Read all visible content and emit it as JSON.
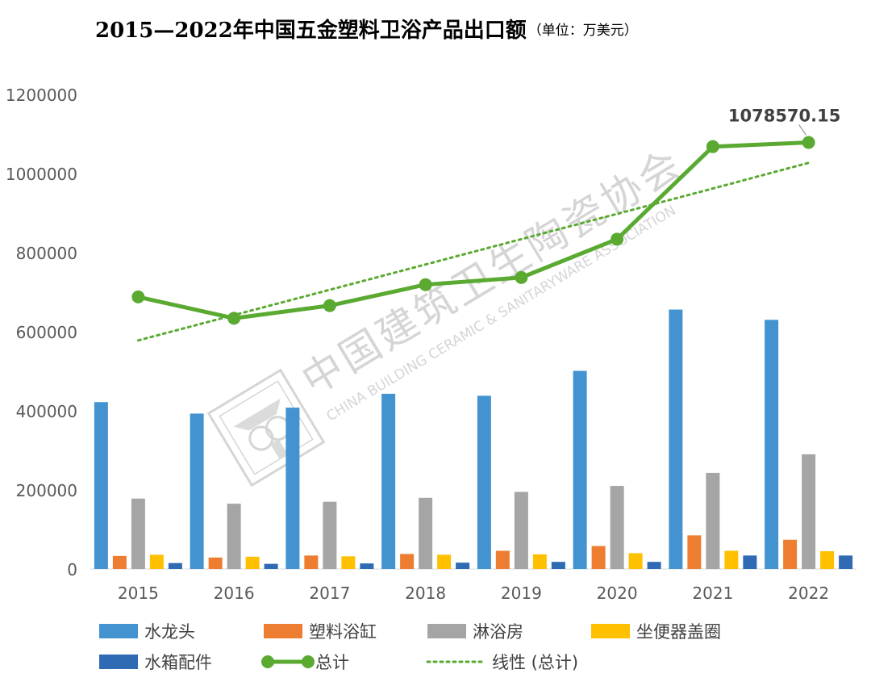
{
  "chart_data": {
    "type": "bar",
    "title": "2015—2022年中国五金塑料卫浴产品出口额",
    "subtitle": "（单位：万美元）",
    "categories": [
      "2015",
      "2016",
      "2017",
      "2018",
      "2019",
      "2020",
      "2021",
      "2022"
    ],
    "ylim": [
      0,
      1200000
    ],
    "yticks": [
      "0",
      "200000",
      "400000",
      "600000",
      "800000",
      "1000000",
      "1200000"
    ],
    "grid": false,
    "legend_position": "bottom",
    "series": [
      {
        "name": "水龙头",
        "type": "bar",
        "color": "#4393d0",
        "values": [
          422000,
          393000,
          408000,
          443000,
          438000,
          501000,
          656000,
          630000
        ]
      },
      {
        "name": "塑料浴缸",
        "type": "bar",
        "color": "#ed7d31",
        "values": [
          33000,
          29000,
          34000,
          38000,
          46000,
          58000,
          85000,
          74000
        ]
      },
      {
        "name": "淋浴房",
        "type": "bar",
        "color": "#a5a5a5",
        "values": [
          178000,
          165000,
          170000,
          180000,
          195000,
          210000,
          243000,
          290000
        ]
      },
      {
        "name": "坐便器盖圈",
        "type": "bar",
        "color": "#ffc000",
        "values": [
          36000,
          31000,
          32000,
          36000,
          37000,
          40000,
          46000,
          45000
        ]
      },
      {
        "name": "水箱配件",
        "type": "bar",
        "color": "#2f6ab5",
        "values": [
          15000,
          13000,
          14000,
          16000,
          18000,
          18000,
          34000,
          34000
        ]
      },
      {
        "name": "总计",
        "type": "line",
        "color": "#5aaa32",
        "values": [
          688000,
          634000,
          666000,
          719000,
          737000,
          834000,
          1068000,
          1078570.15
        ]
      },
      {
        "name": "线性 (总计)",
        "type": "trendline",
        "color": "#5aaa32",
        "values": [
          578000,
          642000,
          706000,
          770000,
          834000,
          898000,
          962000,
          1027000
        ]
      }
    ],
    "annotations": [
      {
        "text": "1078570.15",
        "category": "2022",
        "series": "总计"
      }
    ],
    "watermark": {
      "cn": "中国建筑卫生陶瓷协会",
      "en": "CHINA BUILDING CERAMIC & SANITARYWARE ASSOCIATION"
    }
  }
}
